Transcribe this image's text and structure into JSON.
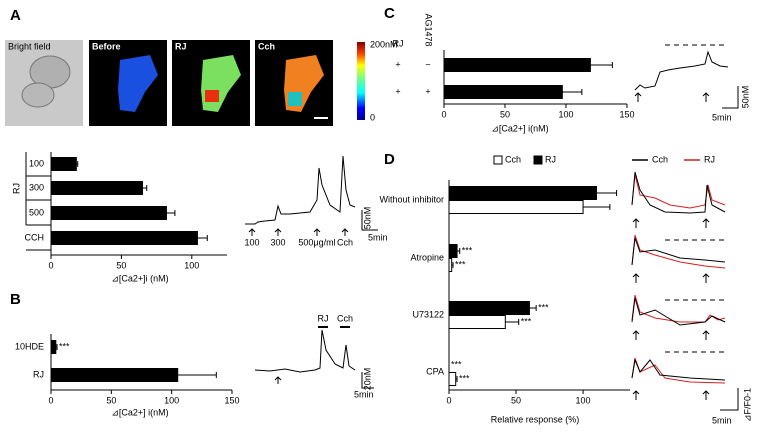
{
  "panel_labels": [
    "A",
    "B",
    "C",
    "D"
  ],
  "images": {
    "labels": [
      "Bright field",
      "Before",
      "RJ",
      "Cch"
    ],
    "colorbar_max": "200nM",
    "colorbar_min": "0"
  },
  "traces": {
    "A": {
      "markers": [
        "100",
        "300",
        "500μg/ml",
        "Cch"
      ],
      "scale_y": "50nM",
      "scale_x": "5min"
    },
    "B": {
      "markers": [
        "RJ",
        "Cch"
      ],
      "scale_y": "20nM",
      "scale_x": "5min"
    },
    "C": {
      "scale_y": "50nM",
      "scale_x": "5min"
    },
    "D": {
      "legend": [
        "Cch",
        "RJ"
      ],
      "scale_y": "⊿F/F0-1",
      "scale_x": "5min"
    }
  },
  "chart_data": [
    {
      "type": "barh",
      "group_label": "RJ",
      "categories": [
        "100",
        "300",
        "500",
        "CCH"
      ],
      "values": [
        18,
        65,
        82,
        104
      ],
      "errors": [
        1,
        3,
        6,
        7
      ],
      "color": "#000000",
      "xlim": [
        0,
        125
      ],
      "xticks": [
        0,
        50,
        100
      ],
      "xlabel": "⊿[Ca2+]i (nM)"
    },
    {
      "type": "barh",
      "categories": [
        "10HDE",
        "RJ"
      ],
      "values": [
        4,
        105
      ],
      "errors": [
        1,
        32
      ],
      "significance": [
        "***",
        null
      ],
      "color": "#000000",
      "xlim": [
        0,
        150
      ],
      "xticks": [
        0,
        50,
        100,
        150
      ],
      "xlabel": "⊿[Ca2+] i(nM)"
    },
    {
      "type": "barh",
      "row_headers": [
        "RJ",
        "AG1478"
      ],
      "row_labels": [
        [
          "+",
          "−"
        ],
        [
          "+",
          "+"
        ]
      ],
      "values": [
        120,
        97
      ],
      "errors": [
        18,
        16
      ],
      "color": "#000000",
      "xlim": [
        0,
        150
      ],
      "xticks": [
        0,
        50,
        100,
        150
      ],
      "xlabel": "⊿[Ca2+] i(nM)"
    },
    {
      "type": "barh",
      "categories": [
        "Without inhibitor",
        "Atropine",
        "U73122",
        "CPA"
      ],
      "series": [
        {
          "name": "Cch",
          "color": "#ffffff",
          "values": [
            100,
            2,
            42,
            5
          ],
          "errors": [
            20,
            1,
            10,
            1
          ],
          "significance": [
            null,
            "***",
            "***",
            "***"
          ]
        },
        {
          "name": "RJ",
          "color": "#000000",
          "values": [
            110,
            6,
            60,
            0
          ],
          "errors": [
            15,
            2,
            5,
            0
          ],
          "significance": [
            null,
            "***",
            "***",
            "***"
          ]
        }
      ],
      "xlim": [
        0,
        135
      ],
      "xticks": [
        0,
        50,
        100
      ],
      "xlabel": "Relative response (%)"
    }
  ]
}
